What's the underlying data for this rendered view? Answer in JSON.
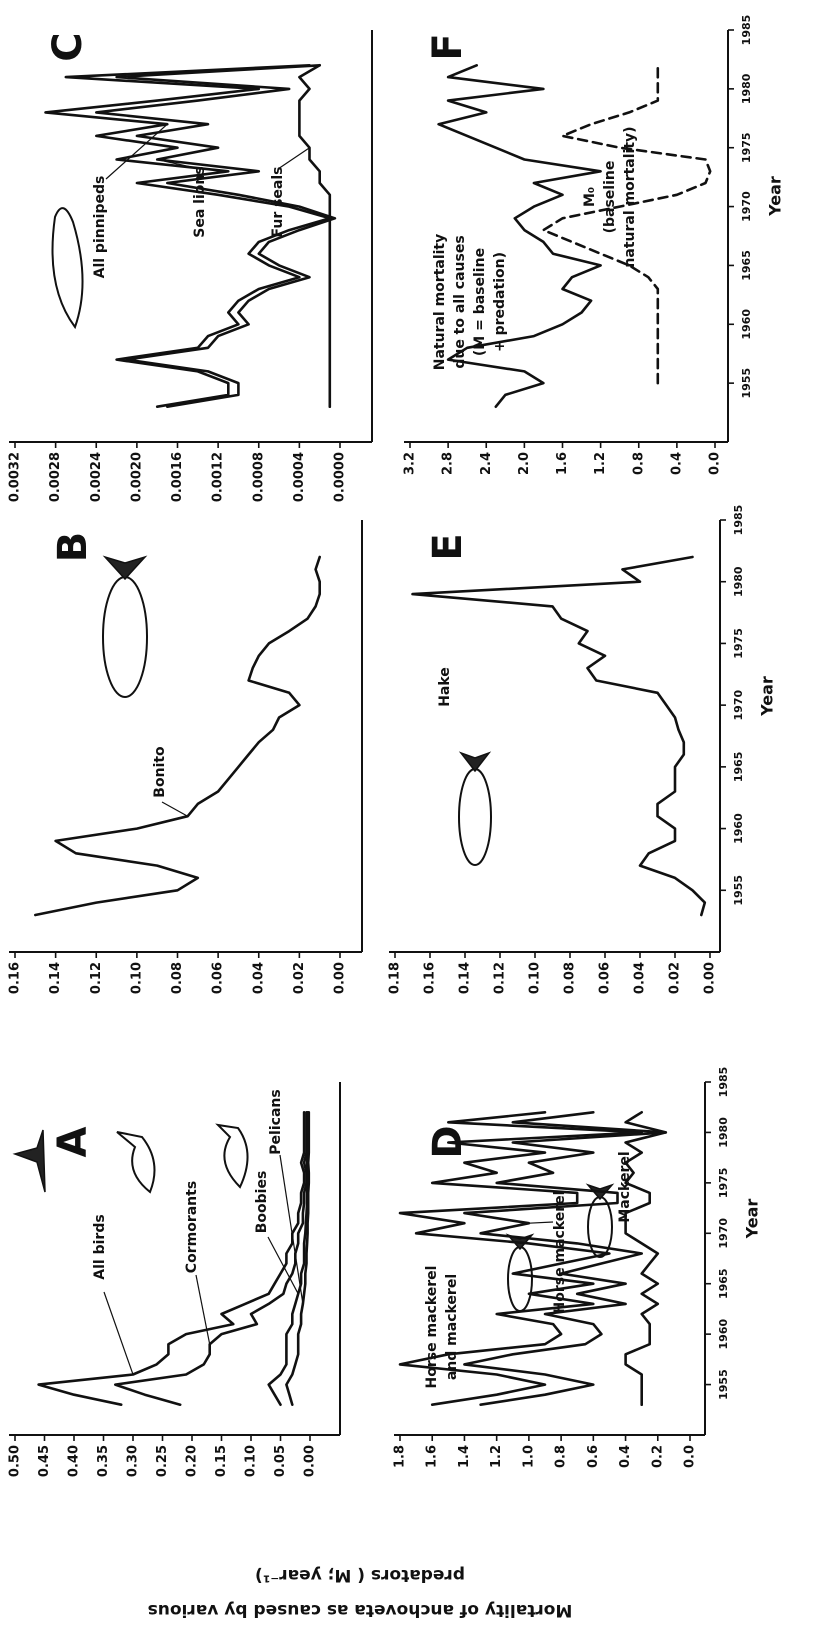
{
  "figure_ylabel_lines": [
    "Mortality of anchoveta as caused by various",
    "predators ( M; year⁻¹)"
  ],
  "chart_data": [
    {
      "type": "line",
      "panel": "A",
      "color": "#111",
      "x": [
        1953,
        1954,
        1955,
        1956,
        1957,
        1958,
        1959,
        1960,
        1961,
        1962,
        1963,
        1964,
        1965,
        1966,
        1967,
        1968,
        1969,
        1970,
        1971,
        1972,
        1973,
        1974,
        1975,
        1976,
        1977,
        1978,
        1979,
        1980,
        1981,
        1982
      ],
      "xlim": [
        1950,
        1985
      ],
      "ylim": [
        0,
        0.5
      ],
      "yticks": [
        {
          "value": 0.5,
          "label": "0.50"
        },
        {
          "value": 0.45,
          "label": "0.45"
        },
        {
          "value": 0.4,
          "label": "0.40"
        },
        {
          "value": 0.35,
          "label": "0.35"
        },
        {
          "value": 0.3,
          "label": "0.30"
        },
        {
          "value": 0.25,
          "label": "0.25"
        },
        {
          "value": 0.2,
          "label": "0.20"
        },
        {
          "value": 0.15,
          "label": "0.15"
        },
        {
          "value": 0.1,
          "label": "0.10"
        },
        {
          "value": 0.05,
          "label": "0.05"
        },
        {
          "value": 0,
          "label": "0.00"
        }
      ],
      "series": [
        {
          "name": "All birds",
          "values": [
            0.32,
            0.4,
            0.46,
            0.3,
            0.26,
            0.24,
            0.24,
            0.21,
            0.13,
            0.15,
            0.11,
            0.07,
            0.06,
            0.05,
            0.04,
            0.04,
            0.03,
            0.03,
            0.02,
            0.02,
            0.015,
            0.015,
            0.01,
            0.01,
            0.015,
            0.01,
            0.01,
            0.01,
            0.01,
            0.01
          ]
        },
        {
          "name": "Cormorants",
          "values": [
            0.22,
            0.28,
            0.33,
            0.21,
            0.18,
            0.17,
            0.17,
            0.15,
            0.09,
            0.1,
            0.07,
            0.045,
            0.04,
            0.03,
            0.025,
            0.025,
            0.02,
            0.02,
            0.012,
            0.012,
            0.01,
            0.01,
            0.006,
            0.006,
            0.01,
            0.006,
            0.006,
            0.006,
            0.006,
            0.006
          ]
        },
        {
          "name": "Boobies",
          "values": [
            0.05,
            0.06,
            0.07,
            0.05,
            0.04,
            0.04,
            0.04,
            0.04,
            0.03,
            0.03,
            0.025,
            0.02,
            0.015,
            0.015,
            0.01,
            0.01,
            0.01,
            0.008,
            0.007,
            0.006,
            0.005,
            0.005,
            0.004,
            0.004,
            0.005,
            0.004,
            0.004,
            0.004,
            0.004,
            0.004
          ]
        },
        {
          "name": "Pelicans",
          "values": [
            0.03,
            0.035,
            0.04,
            0.03,
            0.025,
            0.02,
            0.02,
            0.02,
            0.015,
            0.015,
            0.012,
            0.01,
            0.008,
            0.008,
            0.006,
            0.006,
            0.005,
            0.004,
            0.004,
            0.003,
            0.003,
            0.003,
            0.002,
            0.002,
            0.003,
            0.002,
            0.002,
            0.002,
            0.002,
            0.002
          ]
        }
      ]
    },
    {
      "type": "line",
      "panel": "B",
      "color": "#111",
      "x": [
        1953,
        1954,
        1955,
        1956,
        1957,
        1958,
        1959,
        1960,
        1961,
        1962,
        1963,
        1964,
        1965,
        1966,
        1967,
        1968,
        1969,
        1970,
        1971,
        1972,
        1973,
        1974,
        1975,
        1976,
        1977,
        1978,
        1979,
        1980,
        1981,
        1982
      ],
      "xlim": [
        1950,
        1985
      ],
      "ylim": [
        0,
        0.16
      ],
      "yticks": [
        0.16,
        0.14,
        0.12,
        {
          "value": 0.1,
          "label": "0.10"
        },
        0.08,
        0.06,
        0.04,
        0.02,
        {
          "value": 0,
          "label": "0.00"
        }
      ],
      "series": [
        {
          "name": "Bonito",
          "values": [
            0.15,
            0.12,
            0.08,
            0.07,
            0.09,
            0.13,
            0.14,
            0.1,
            0.075,
            0.07,
            0.06,
            0.055,
            0.05,
            0.045,
            0.04,
            0.033,
            0.03,
            0.02,
            0.025,
            0.045,
            0.043,
            0.04,
            0.035,
            0.025,
            0.016,
            0.012,
            0.01,
            0.01,
            0.012,
            0.01
          ]
        }
      ]
    },
    {
      "type": "line",
      "panel": "C",
      "color": "#111",
      "x": [
        1953,
        1954,
        1955,
        1956,
        1957,
        1958,
        1959,
        1960,
        1961,
        1962,
        1963,
        1964,
        1965,
        1966,
        1967,
        1968,
        1969,
        1970,
        1971,
        1972,
        1973,
        1974,
        1975,
        1976,
        1977,
        1978,
        1979,
        1980,
        1981,
        1982
      ],
      "xlim": [
        1950,
        1985
      ],
      "ylim": [
        0,
        0.0032
      ],
      "yticks": [
        0.0032,
        0.0028,
        0.0024,
        {
          "value": 0.002,
          "label": "0.0020"
        },
        0.0016,
        0.0012,
        0.0008,
        0.0004,
        {
          "value": 0,
          "label": "0.0000"
        }
      ],
      "series": [
        {
          "name": "All pinnipeds",
          "values": [
            0.0018,
            0.0011,
            0.0011,
            0.0014,
            0.0022,
            0.0014,
            0.0013,
            0.001,
            0.0011,
            0.001,
            0.0008,
            0.0004,
            0.0007,
            0.0009,
            0.0008,
            0.0005,
            0.0001,
            0.0005,
            0.0012,
            0.002,
            0.0011,
            0.0022,
            0.0016,
            0.0024,
            0.0017,
            0.0029,
            0.0018,
            0.0008,
            0.0027,
            0.0003
          ]
        },
        {
          "name": "Sea lions",
          "values": [
            0.0017,
            0.001,
            0.001,
            0.0013,
            0.0021,
            0.0013,
            0.0012,
            0.0009,
            0.001,
            0.0009,
            0.0007,
            0.0003,
            0.0006,
            0.0008,
            0.0007,
            0.0004,
            5e-05,
            0.0004,
            0.001,
            0.0017,
            0.0008,
            0.0018,
            0.0012,
            0.002,
            0.0013,
            0.0024,
            0.0014,
            0.0005,
            0.0022,
            0.0002
          ]
        },
        {
          "name": "Fur seals",
          "values": [
            0.0001,
            0.0001,
            0.0001,
            0.0001,
            0.0001,
            0.0001,
            0.0001,
            0.0001,
            0.0001,
            0.0001,
            0.0001,
            0.0001,
            0.0001,
            0.0001,
            0.0001,
            0.0001,
            0.0001,
            0.0001,
            0.0001,
            0.0002,
            0.0002,
            0.0003,
            0.0003,
            0.0004,
            0.0004,
            0.0004,
            0.0004,
            0.0003,
            0.0004,
            0.0002
          ]
        }
      ]
    },
    {
      "type": "line",
      "panel": "D",
      "color": "#111",
      "x": [
        1953,
        1954,
        1955,
        1956,
        1957,
        1958,
        1959,
        1960,
        1961,
        1962,
        1963,
        1964,
        1965,
        1966,
        1967,
        1968,
        1969,
        1970,
        1971,
        1972,
        1973,
        1974,
        1975,
        1976,
        1977,
        1978,
        1979,
        1980,
        1981,
        1982
      ],
      "xlim": [
        1950,
        1985
      ],
      "xticks": [
        1955,
        1960,
        1965,
        1970,
        1975,
        1980,
        1985
      ],
      "xlabel": "Year",
      "ylim": [
        0,
        1.8
      ],
      "yticks": [
        1.8,
        1.6,
        1.4,
        1.2,
        {
          "value": 1,
          "label": "1.0"
        },
        0.8,
        0.6,
        0.4,
        0.2,
        {
          "value": 0,
          "label": "0.0"
        }
      ],
      "series": [
        {
          "label_lines": [
            "Horse mackerel",
            "and mackerel"
          ],
          "values": [
            1.6,
            1.2,
            0.9,
            1.2,
            1.8,
            1.5,
            0.9,
            0.8,
            0.85,
            1.2,
            0.6,
            1.0,
            0.6,
            1.1,
            0.8,
            0.5,
            1.0,
            1.7,
            1.4,
            1.8,
            0.7,
            0.7,
            1.6,
            1.2,
            1.4,
            0.9,
            1.5,
            0.3,
            1.5,
            0.9
          ]
        },
        {
          "name": "Horse mackerel",
          "values": [
            1.3,
            0.9,
            0.6,
            0.9,
            1.4,
            1.1,
            0.65,
            0.55,
            0.6,
            0.9,
            0.4,
            0.7,
            0.4,
            0.8,
            0.55,
            0.3,
            0.7,
            1.3,
            1.0,
            1.4,
            0.45,
            0.45,
            1.2,
            0.85,
            1.0,
            0.6,
            1.1,
            0.15,
            1.1,
            0.6
          ]
        },
        {
          "name": "Mackerel",
          "values": [
            0.3,
            0.3,
            0.3,
            0.3,
            0.4,
            0.4,
            0.25,
            0.25,
            0.25,
            0.3,
            0.2,
            0.3,
            0.2,
            0.3,
            0.25,
            0.2,
            0.3,
            0.4,
            0.4,
            0.4,
            0.25,
            0.25,
            0.4,
            0.35,
            0.4,
            0.3,
            0.4,
            0.15,
            0.4,
            0.3
          ]
        }
      ]
    },
    {
      "type": "line",
      "panel": "E",
      "color": "#111",
      "x": [
        1953,
        1954,
        1955,
        1956,
        1957,
        1958,
        1959,
        1960,
        1961,
        1962,
        1963,
        1964,
        1965,
        1966,
        1967,
        1968,
        1969,
        1970,
        1971,
        1972,
        1973,
        1974,
        1975,
        1976,
        1977,
        1978,
        1979,
        1980,
        1981,
        1982
      ],
      "xlim": [
        1950,
        1985
      ],
      "xticks": [
        1955,
        1960,
        1965,
        1970,
        1975,
        1980,
        1985
      ],
      "xlabel": "Year",
      "ylim": [
        0,
        0.18
      ],
      "yticks": [
        0.18,
        0.16,
        0.14,
        0.12,
        {
          "value": 0.1,
          "label": "0.10"
        },
        0.08,
        0.06,
        0.04,
        0.02,
        {
          "value": 0,
          "label": "0.00"
        }
      ],
      "series": [
        {
          "name": "Hake",
          "values": [
            0.005,
            0.003,
            0.01,
            0.02,
            0.04,
            0.035,
            0.02,
            0.02,
            0.03,
            0.03,
            0.02,
            0.02,
            0.02,
            0.015,
            0.015,
            0.018,
            0.02,
            0.025,
            0.03,
            0.065,
            0.07,
            0.06,
            0.075,
            0.07,
            0.085,
            0.09,
            0.17,
            0.04,
            0.05,
            0.01
          ]
        }
      ]
    },
    {
      "type": "line",
      "panel": "F",
      "color": "#111",
      "x": [
        1953,
        1954,
        1955,
        1956,
        1957,
        1958,
        1959,
        1960,
        1961,
        1962,
        1963,
        1964,
        1965,
        1966,
        1967,
        1968,
        1969,
        1970,
        1971,
        1972,
        1973,
        1974,
        1975,
        1976,
        1977,
        1978,
        1979,
        1980,
        1981,
        1982
      ],
      "xlim": [
        1950,
        1985
      ],
      "xticks": [
        1955,
        1960,
        1965,
        1970,
        1975,
        1980,
        1985
      ],
      "xlabel": "Year",
      "ylim": [
        0,
        3.2
      ],
      "yticks": [
        3.2,
        2.8,
        2.4,
        {
          "value": 2,
          "label": "2.0"
        },
        1.6,
        1.2,
        0.8,
        0.4,
        {
          "value": 0,
          "label": "0.0"
        }
      ],
      "series": [
        {
          "label_lines": [
            "Natural mortality",
            "due to all causes",
            "(M = baseline",
            "+ predation)"
          ],
          "values": [
            2.3,
            2.2,
            1.8,
            2.0,
            2.8,
            2.6,
            1.9,
            1.6,
            1.4,
            1.3,
            1.6,
            1.5,
            1.2,
            1.7,
            1.8,
            2.0,
            2.1,
            1.9,
            1.6,
            1.9,
            1.2,
            2.0,
            2.3,
            2.6,
            2.9,
            2.4,
            2.8,
            1.8,
            2.8,
            2.5
          ]
        },
        {
          "label_lines": [
            "M₀",
            "(baseline",
            "natural mortality)"
          ],
          "dash": true,
          "values": [
            null,
            null,
            0.6,
            0.6,
            0.6,
            0.6,
            0.6,
            0.6,
            0.6,
            0.6,
            0.6,
            0.7,
            0.9,
            1.2,
            1.5,
            1.8,
            1.6,
            1.0,
            0.4,
            0.1,
            0.05,
            0.1,
            1.0,
            1.6,
            1.3,
            0.9,
            0.6,
            0.6,
            0.6,
            0.6
          ]
        }
      ]
    }
  ]
}
